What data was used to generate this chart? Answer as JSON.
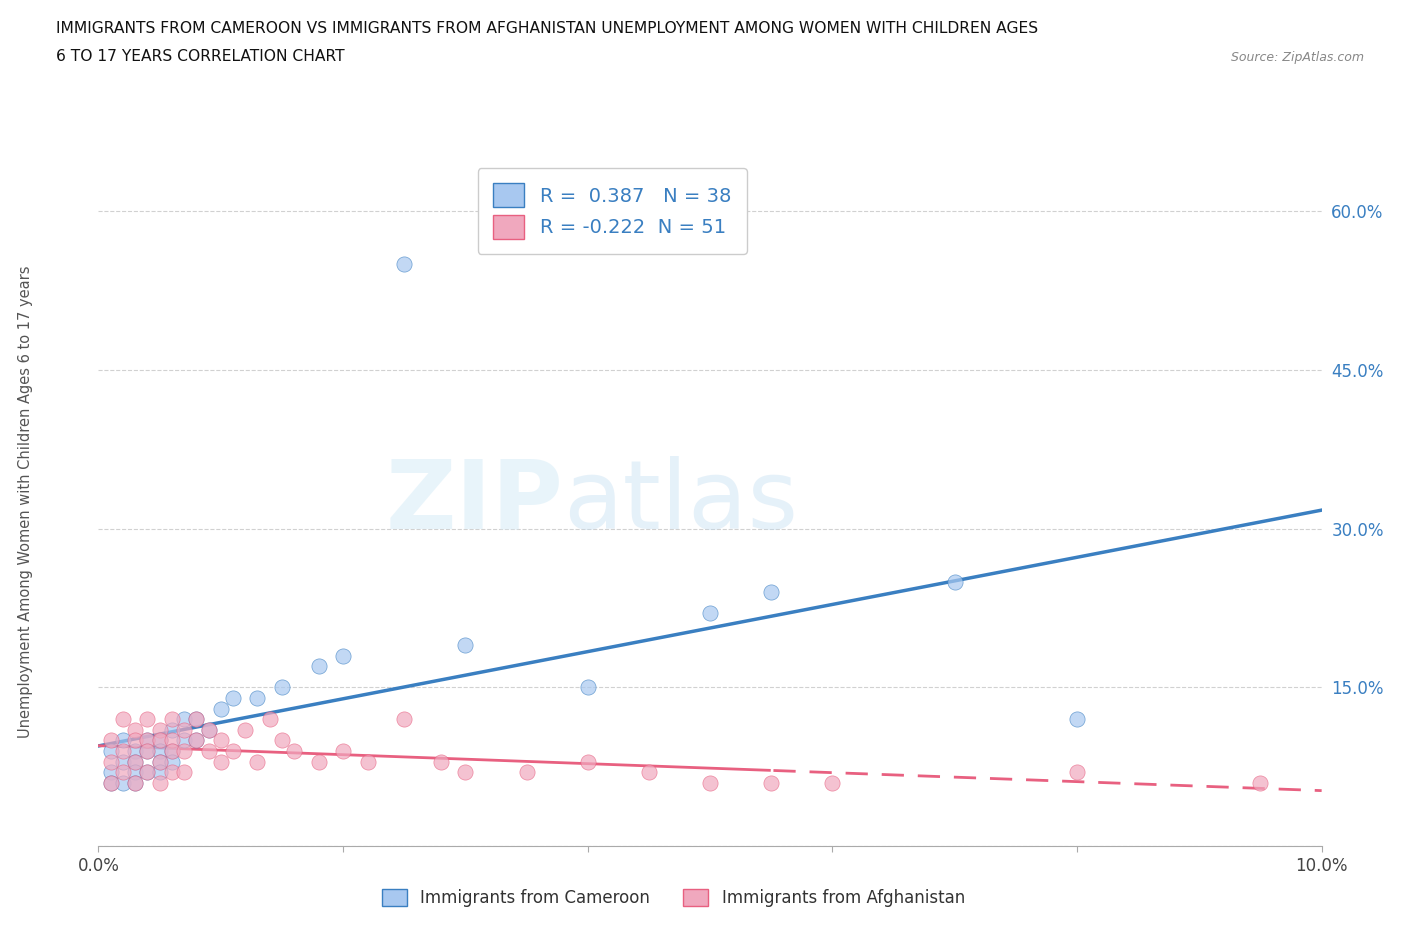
{
  "title_line1": "IMMIGRANTS FROM CAMEROON VS IMMIGRANTS FROM AFGHANISTAN UNEMPLOYMENT AMONG WOMEN WITH CHILDREN AGES",
  "title_line2": "6 TO 17 YEARS CORRELATION CHART",
  "source": "Source: ZipAtlas.com",
  "ylabel": "Unemployment Among Women with Children Ages 6 to 17 years",
  "xlim": [
    0.0,
    0.1
  ],
  "ylim": [
    0.0,
    0.65
  ],
  "xticks": [
    0.0,
    0.02,
    0.04,
    0.06,
    0.08,
    0.1
  ],
  "xtick_labels": [
    "0.0%",
    "",
    "",
    "",
    "",
    "10.0%"
  ],
  "ytick_positions": [
    0.0,
    0.15,
    0.3,
    0.45,
    0.6
  ],
  "ytick_labels": [
    "",
    "15.0%",
    "30.0%",
    "45.0%",
    "60.0%"
  ],
  "r_cameroon": 0.387,
  "n_cameroon": 38,
  "r_afghanistan": -0.222,
  "n_afghanistan": 51,
  "cameroon_color": "#a8c8f0",
  "afghanistan_color": "#f0a8be",
  "cameroon_line_color": "#3a7fc1",
  "afghanistan_line_color": "#e86080",
  "legend_label_cameroon": "Immigrants from Cameroon",
  "legend_label_afghanistan": "Immigrants from Afghanistan",
  "cameroon_x": [
    0.001,
    0.001,
    0.001,
    0.002,
    0.002,
    0.002,
    0.003,
    0.003,
    0.003,
    0.003,
    0.004,
    0.004,
    0.004,
    0.005,
    0.005,
    0.005,
    0.005,
    0.006,
    0.006,
    0.006,
    0.007,
    0.007,
    0.008,
    0.008,
    0.009,
    0.01,
    0.011,
    0.013,
    0.015,
    0.018,
    0.02,
    0.025,
    0.03,
    0.04,
    0.05,
    0.055,
    0.07,
    0.08
  ],
  "cameroon_y": [
    0.09,
    0.07,
    0.06,
    0.1,
    0.08,
    0.06,
    0.09,
    0.08,
    0.07,
    0.06,
    0.1,
    0.09,
    0.07,
    0.1,
    0.09,
    0.08,
    0.07,
    0.11,
    0.09,
    0.08,
    0.12,
    0.1,
    0.12,
    0.1,
    0.11,
    0.13,
    0.14,
    0.14,
    0.15,
    0.17,
    0.18,
    0.55,
    0.19,
    0.15,
    0.22,
    0.24,
    0.25,
    0.12
  ],
  "afghanistan_x": [
    0.001,
    0.001,
    0.001,
    0.002,
    0.002,
    0.002,
    0.003,
    0.003,
    0.003,
    0.003,
    0.004,
    0.004,
    0.004,
    0.004,
    0.005,
    0.005,
    0.005,
    0.005,
    0.006,
    0.006,
    0.006,
    0.006,
    0.007,
    0.007,
    0.007,
    0.008,
    0.008,
    0.009,
    0.009,
    0.01,
    0.01,
    0.011,
    0.012,
    0.013,
    0.014,
    0.015,
    0.016,
    0.018,
    0.02,
    0.022,
    0.025,
    0.028,
    0.03,
    0.035,
    0.04,
    0.045,
    0.05,
    0.055,
    0.06,
    0.08,
    0.095
  ],
  "afghanistan_y": [
    0.1,
    0.08,
    0.06,
    0.12,
    0.09,
    0.07,
    0.11,
    0.1,
    0.08,
    0.06,
    0.12,
    0.1,
    0.09,
    0.07,
    0.11,
    0.1,
    0.08,
    0.06,
    0.12,
    0.1,
    0.09,
    0.07,
    0.11,
    0.09,
    0.07,
    0.12,
    0.1,
    0.11,
    0.09,
    0.1,
    0.08,
    0.09,
    0.11,
    0.08,
    0.12,
    0.1,
    0.09,
    0.08,
    0.09,
    0.08,
    0.12,
    0.08,
    0.07,
    0.07,
    0.08,
    0.07,
    0.06,
    0.06,
    0.06,
    0.07,
    0.06
  ]
}
